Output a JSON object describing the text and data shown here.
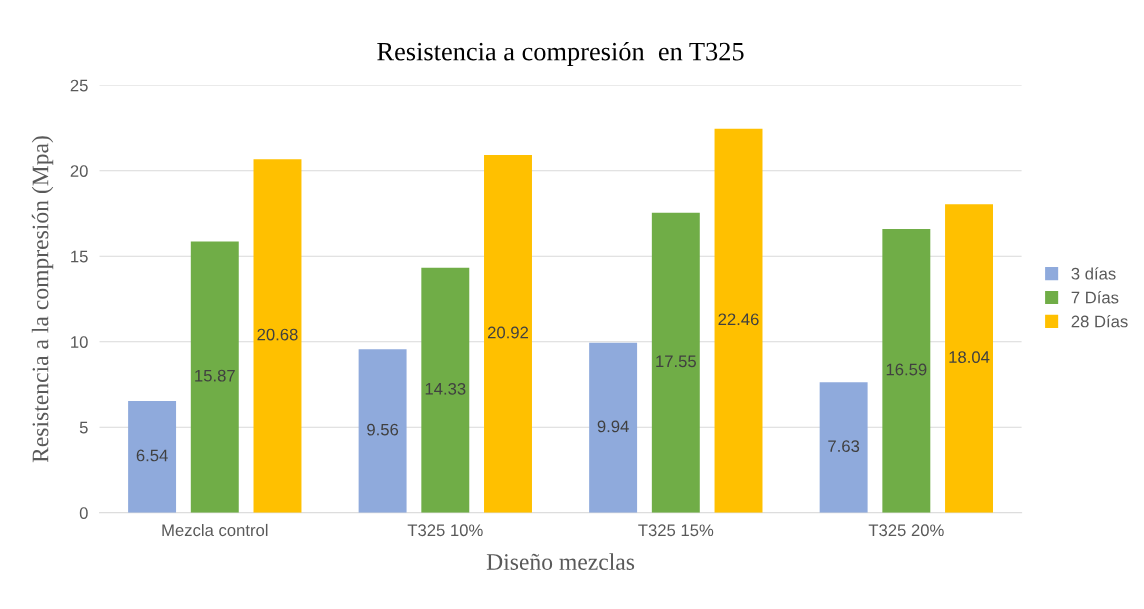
{
  "chart_data": {
    "type": "bar",
    "title": "Resistencia a compresión  en T325",
    "xlabel": "Diseño mezclas",
    "ylabel": "Resistencia a la compresión (Mpa)",
    "categories": [
      "Mezcla control",
      "T325 10%",
      "T325 15%",
      "T325 20%"
    ],
    "series": [
      {
        "name": "3 días",
        "color": "#8faadc",
        "values": [
          6.54,
          9.56,
          9.94,
          7.63
        ]
      },
      {
        "name": "7 Días",
        "color": "#70ad47",
        "values": [
          15.87,
          14.33,
          17.55,
          16.59
        ]
      },
      {
        "name": "28 Días",
        "color": "#ffc000",
        "values": [
          20.68,
          20.92,
          22.46,
          18.04
        ]
      }
    ],
    "ylim": [
      0,
      25
    ],
    "yticks": [
      0,
      5,
      10,
      15,
      20,
      25
    ],
    "grid": "y",
    "legend": "right",
    "data_labels": true
  }
}
